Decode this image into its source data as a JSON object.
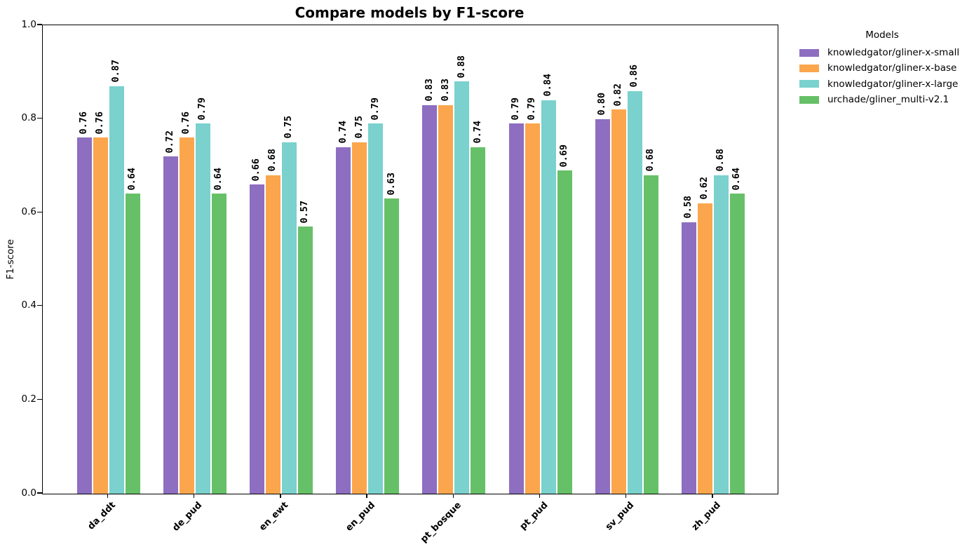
{
  "chart_data": {
    "type": "bar",
    "title": "Compare models by F1-score",
    "ylabel": "F1-score",
    "xlabel": "",
    "ylim": [
      0.0,
      1.0
    ],
    "yticks": [
      "0.0",
      "0.2",
      "0.4",
      "0.6",
      "0.8",
      "1.0"
    ],
    "grid": false,
    "bar_label_rotation": 90,
    "legend": {
      "title": "Models",
      "position": "outside-upper-right"
    },
    "categories": [
      "da_ddt",
      "de_pud",
      "en_ewt",
      "en_pud",
      "pt_bosque",
      "pt_pud",
      "sv_pud",
      "zh_pud"
    ],
    "series": [
      {
        "name": "knowledgator/gliner-x-small",
        "color": "#8d6ec0",
        "values": [
          0.76,
          0.72,
          0.66,
          0.74,
          0.83,
          0.79,
          0.8,
          0.58
        ]
      },
      {
        "name": "knowledgator/gliner-x-base",
        "color": "#fba64d",
        "values": [
          0.76,
          0.76,
          0.68,
          0.75,
          0.83,
          0.79,
          0.82,
          0.62
        ]
      },
      {
        "name": "knowledgator/gliner-x-large",
        "color": "#7ad1cd",
        "values": [
          0.87,
          0.79,
          0.75,
          0.79,
          0.88,
          0.84,
          0.86,
          0.68
        ]
      },
      {
        "name": "urchade/gliner_multi-v2.1",
        "color": "#66c067",
        "values": [
          0.64,
          0.64,
          0.57,
          0.63,
          0.74,
          0.69,
          0.68,
          0.64
        ]
      }
    ]
  }
}
